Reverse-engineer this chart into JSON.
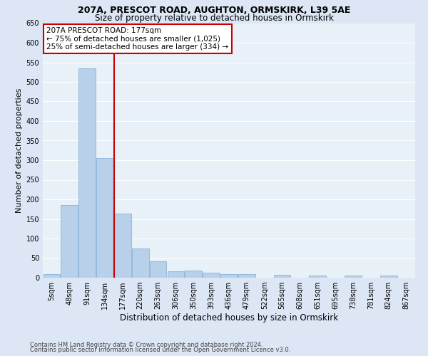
{
  "title1": "207A, PRESCOT ROAD, AUGHTON, ORMSKIRK, L39 5AE",
  "title2": "Size of property relative to detached houses in Ormskirk",
  "xlabel": "Distribution of detached houses by size in Ormskirk",
  "ylabel": "Number of detached properties",
  "footnote1": "Contains HM Land Registry data © Crown copyright and database right 2024.",
  "footnote2": "Contains public sector information licensed under the Open Government Licence v3.0.",
  "bin_labels": [
    "5sqm",
    "48sqm",
    "91sqm",
    "134sqm",
    "177sqm",
    "220sqm",
    "263sqm",
    "306sqm",
    "350sqm",
    "393sqm",
    "436sqm",
    "479sqm",
    "522sqm",
    "565sqm",
    "608sqm",
    "651sqm",
    "695sqm",
    "738sqm",
    "781sqm",
    "824sqm",
    "867sqm"
  ],
  "bar_heights": [
    10,
    185,
    535,
    305,
    163,
    75,
    42,
    17,
    18,
    12,
    10,
    10,
    0,
    8,
    0,
    5,
    0,
    5,
    0,
    5,
    0
  ],
  "bar_color": "#b8d0ea",
  "bar_edge_color": "#7aadd4",
  "vline_x_index": 4,
  "vline_color": "#cc0000",
  "annotation_title": "207A PRESCOT ROAD: 177sqm",
  "annotation_line1": "← 75% of detached houses are smaller (1,025)",
  "annotation_line2": "25% of semi-detached houses are larger (334) →",
  "annotation_box_facecolor": "#ffffff",
  "annotation_box_edgecolor": "#cc0000",
  "ylim": [
    0,
    650
  ],
  "yticks": [
    0,
    50,
    100,
    150,
    200,
    250,
    300,
    350,
    400,
    450,
    500,
    550,
    600,
    650
  ],
  "bg_color": "#dce6f5",
  "plot_bg_color": "#e8f0f8",
  "grid_color": "#ffffff",
  "title1_fontsize": 9,
  "title2_fontsize": 8.5,
  "ylabel_fontsize": 8,
  "xlabel_fontsize": 8.5,
  "tick_fontsize": 7,
  "footnote_fontsize": 6,
  "annot_fontsize": 7.5
}
